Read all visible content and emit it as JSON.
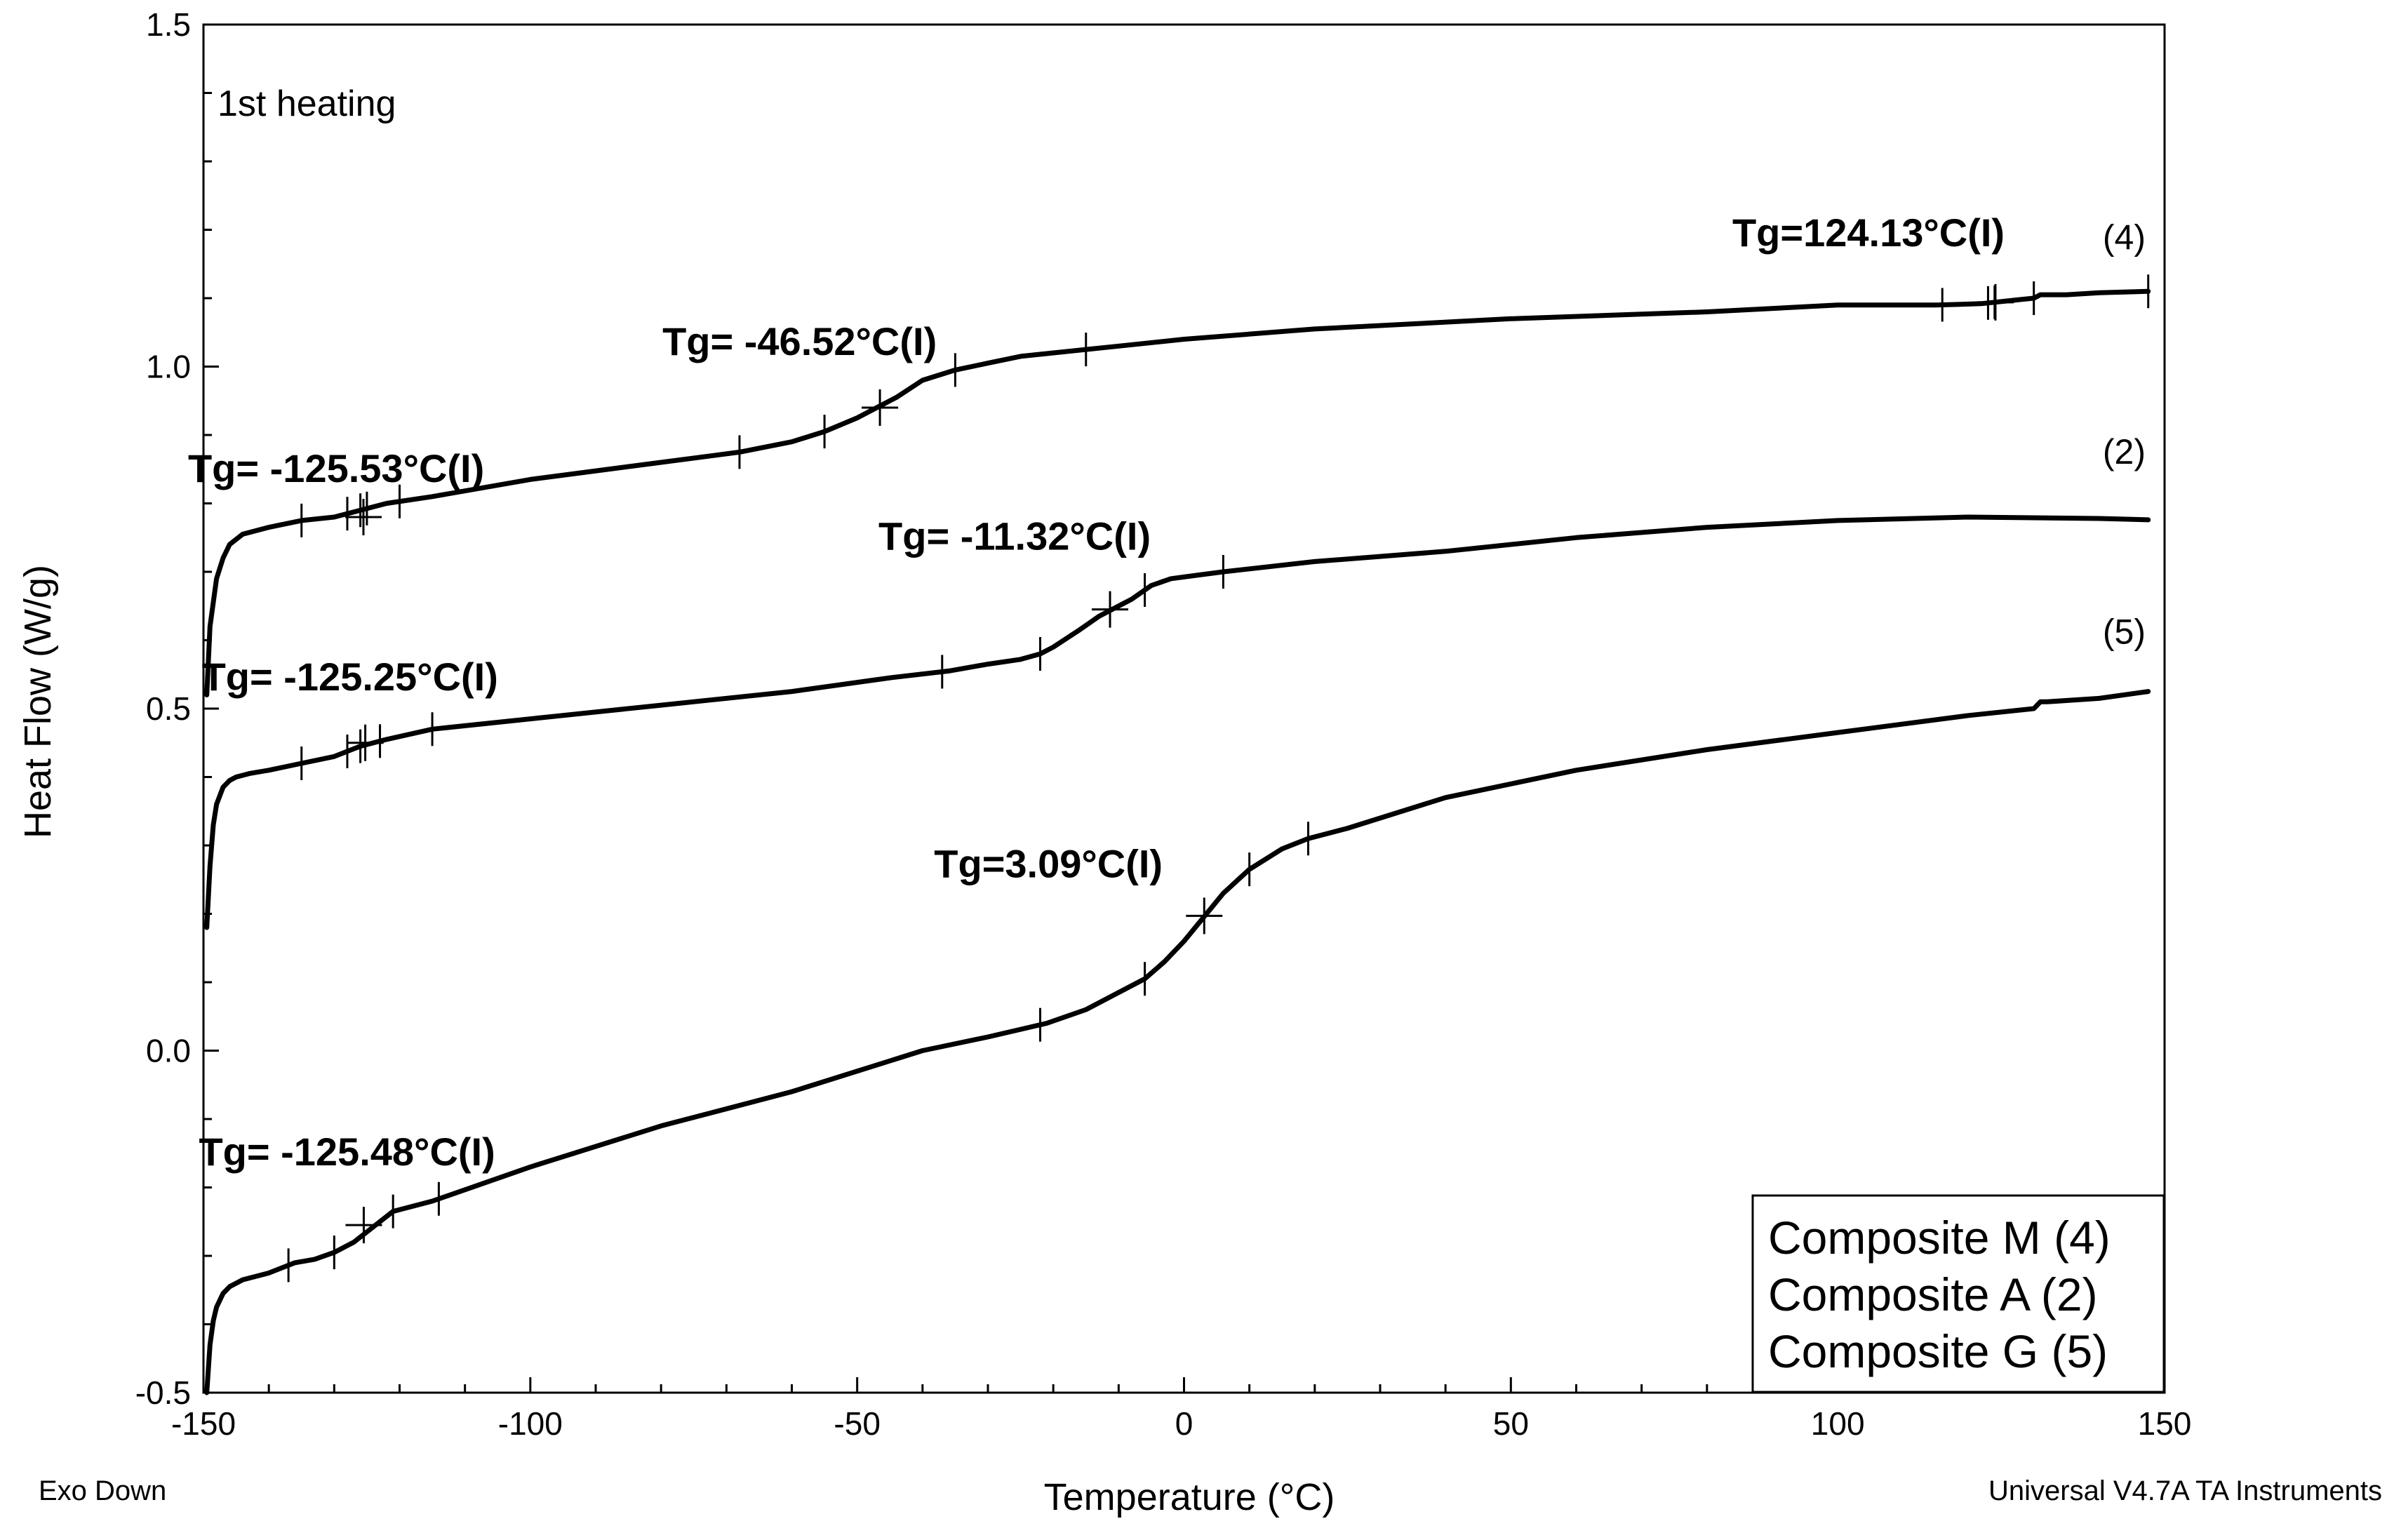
{
  "chart_data": {
    "type": "line",
    "title": "",
    "panel_label": "1st heating",
    "xlabel": "Temperature (°C)",
    "ylabel": "Heat Flow (W/g)",
    "xlim": [
      -150,
      150
    ],
    "ylim": [
      -0.5,
      1.5
    ],
    "xticks": [
      -150,
      -100,
      -50,
      0,
      50,
      100,
      150
    ],
    "xtick_labels": [
      "-150",
      "-100",
      "-50",
      "0",
      "50",
      "100",
      "150"
    ],
    "yticks": [
      -0.5,
      0.0,
      0.5,
      1.0,
      1.5
    ],
    "ytick_labels": [
      "-0.5",
      "0.0",
      "0.5",
      "1.0",
      "1.5"
    ],
    "grid": false,
    "footer_left": "Exo Down",
    "footer_right": "Universal V4.7A TA Instruments",
    "legend": {
      "placement": "bottom-right",
      "entries": [
        "Composite M (4)",
        "Composite A (2)",
        "Composite G (5)"
      ]
    },
    "series": [
      {
        "name": "Composite M (4)",
        "curve_label": "(4)",
        "x": [
          -149.5,
          -149,
          -148,
          -147,
          -146,
          -144,
          -140,
          -135,
          -130,
          -126,
          -122,
          -115,
          -100,
          -80,
          -68,
          -60,
          -55,
          -50,
          -47,
          -44,
          -40,
          -35,
          -30,
          -25,
          -20,
          -15,
          -10,
          0,
          20,
          50,
          80,
          100,
          115,
          122,
          124,
          126,
          128,
          130,
          131,
          135,
          140,
          147.5
        ],
        "y": [
          0.52,
          0.62,
          0.69,
          0.72,
          0.74,
          0.755,
          0.765,
          0.775,
          0.78,
          0.79,
          0.8,
          0.81,
          0.835,
          0.86,
          0.875,
          0.89,
          0.905,
          0.925,
          0.94,
          0.955,
          0.98,
          0.995,
          1.005,
          1.015,
          1.02,
          1.025,
          1.03,
          1.04,
          1.055,
          1.07,
          1.08,
          1.09,
          1.09,
          1.092,
          1.094,
          1.096,
          1.098,
          1.1,
          1.105,
          1.105,
          1.108,
          1.11
        ]
      },
      {
        "name": "Composite A (2)",
        "curve_label": "(2)",
        "x": [
          -149.5,
          -149,
          -148.5,
          -148,
          -147,
          -146,
          -145,
          -143,
          -140,
          -135,
          -130,
          -126,
          -122,
          -115,
          -100,
          -80,
          -60,
          -45,
          -36,
          -30,
          -25,
          -22,
          -20,
          -16,
          -13,
          -11,
          -8,
          -5,
          -2,
          2,
          6,
          20,
          40,
          60,
          80,
          100,
          120,
          140,
          147.5
        ],
        "y": [
          0.18,
          0.27,
          0.33,
          0.36,
          0.385,
          0.395,
          0.4,
          0.405,
          0.41,
          0.42,
          0.43,
          0.445,
          0.455,
          0.47,
          0.485,
          0.505,
          0.525,
          0.545,
          0.555,
          0.565,
          0.572,
          0.58,
          0.59,
          0.615,
          0.635,
          0.645,
          0.66,
          0.68,
          0.69,
          0.695,
          0.7,
          0.715,
          0.73,
          0.75,
          0.765,
          0.775,
          0.78,
          0.778,
          0.776
        ]
      },
      {
        "name": "Composite G (5)",
        "curve_label": "(5)",
        "x": [
          -149.5,
          -149,
          -148.5,
          -148,
          -147,
          -146,
          -144,
          -140,
          -136,
          -133,
          -130,
          -127,
          -125,
          -123,
          -121,
          -115,
          -100,
          -80,
          -60,
          -40,
          -30,
          -21,
          -15,
          -10,
          -6,
          -3,
          0,
          3,
          6,
          10,
          15,
          19,
          25,
          40,
          60,
          80,
          100,
          120,
          130,
          131,
          132,
          140,
          147.5
        ],
        "y": [
          -0.5,
          -0.43,
          -0.395,
          -0.375,
          -0.355,
          -0.345,
          -0.335,
          -0.325,
          -0.31,
          -0.305,
          -0.295,
          -0.28,
          -0.265,
          -0.25,
          -0.235,
          -0.22,
          -0.17,
          -0.11,
          -0.06,
          0.0,
          0.02,
          0.04,
          0.06,
          0.085,
          0.105,
          0.13,
          0.16,
          0.195,
          0.23,
          0.265,
          0.295,
          0.31,
          0.325,
          0.37,
          0.41,
          0.44,
          0.465,
          0.49,
          0.5,
          0.51,
          0.51,
          0.515,
          0.525
        ]
      }
    ],
    "annotations": [
      {
        "text": "Tg=  -125.53°C(I)",
        "x": -125.53,
        "y": 0.78,
        "series": 0,
        "ticks": [
          -135,
          -128,
          -126,
          -125,
          -120
        ]
      },
      {
        "text": "Tg= -46.52°C(I)",
        "x": -46.52,
        "y": 0.94,
        "series": 0,
        "ticks": [
          -68,
          -55,
          -35,
          -15
        ]
      },
      {
        "text": "Tg=124.13°C(I)",
        "x": 124.13,
        "y": 1.094,
        "series": 0,
        "ticks": [
          116,
          123,
          124,
          130,
          147.5
        ]
      },
      {
        "text": "Tg= -125.25°C(I)",
        "x": -125.25,
        "y": 0.45,
        "series": 1,
        "ticks": [
          -135,
          -128,
          -126,
          -123,
          -115
        ]
      },
      {
        "text": "Tg= -11.32°C(I)",
        "x": -11.32,
        "y": 0.645,
        "series": 1,
        "ticks": [
          -37,
          -22,
          -6,
          6
        ]
      },
      {
        "text": "Tg=  -125.48°C(I)",
        "x": -125.48,
        "y": -0.255,
        "series": 2,
        "ticks": [
          -137,
          -130,
          -121,
          -114
        ]
      },
      {
        "text": "Tg=3.09°C(I)",
        "x": 3.09,
        "y": 0.197,
        "series": 2,
        "ticks": [
          -22,
          -6,
          10,
          19
        ]
      }
    ],
    "colors": {
      "line": "#000000",
      "background": "#ffffff"
    }
  }
}
